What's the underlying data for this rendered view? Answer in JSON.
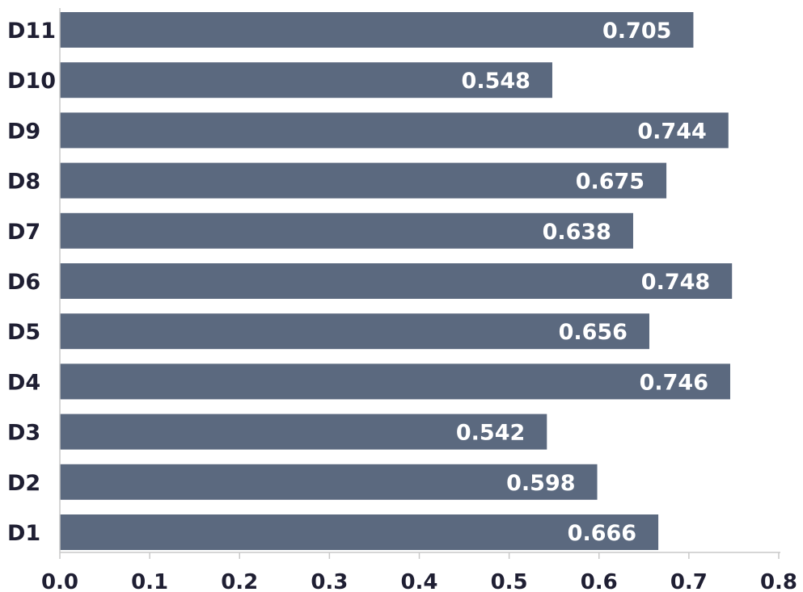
{
  "chart_data": {
    "type": "bar",
    "orientation": "horizontal",
    "categories": [
      "D11",
      "D10",
      "D9",
      "D8",
      "D7",
      "D6",
      "D5",
      "D4",
      "D3",
      "D2",
      "D1"
    ],
    "values": [
      0.705,
      0.548,
      0.744,
      0.675,
      0.638,
      0.748,
      0.656,
      0.746,
      0.542,
      0.598,
      0.666
    ],
    "value_labels": [
      "0.705",
      "0.548",
      "0.744",
      "0.675",
      "0.638",
      "0.748",
      "0.656",
      "0.746",
      "0.542",
      "0.598",
      "0.666"
    ],
    "xticks": [
      "0.0",
      "0.1",
      "0.2",
      "0.3",
      "0.4",
      "0.5",
      "0.6",
      "0.7",
      "0.8"
    ],
    "xlim": [
      0,
      0.8
    ],
    "title": "",
    "xlabel": "",
    "ylabel": "",
    "grid": false,
    "legend": "none",
    "colors": {
      "bar": "#5b697f",
      "value_text": "#ffffff",
      "label_text": "#1f1f33",
      "axis": "#c9c9c9"
    }
  }
}
